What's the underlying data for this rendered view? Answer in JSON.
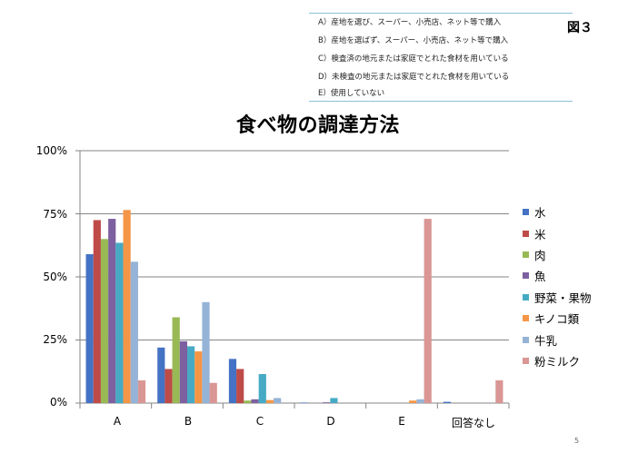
{
  "figure_label": "図３",
  "options": [
    "A）産地を選び、スーパー、小売店、ネット等で購入",
    "B）産地を選ばず、スーパー、小売店、ネット等で購入",
    "C）検査済の地元または家庭でとれた食材を用いている",
    "D）未検査の地元または家庭でとれた食材を用いている",
    "E）使用していない"
  ],
  "page_number": "5",
  "colors": {
    "水": "#4472c4",
    "米": "#be4b48",
    "肉": "#98b954",
    "魚": "#7d60a0",
    "野菜・果物": "#46aac4",
    "キノコ類": "#f59646",
    "牛乳": "#95b3d7",
    "粉ミルク": "#d99694",
    "grid": "#868686"
  },
  "chart_data": {
    "type": "bar",
    "title": "食べ物の調達方法",
    "xlabel": "",
    "ylabel": "",
    "categories": [
      "A",
      "B",
      "C",
      "D",
      "E",
      "回答なし"
    ],
    "y_tick_labels": [
      "0%",
      "25%",
      "50%",
      "75%",
      "100%"
    ],
    "ylim": [
      0,
      100
    ],
    "grid": true,
    "legend_position": "right",
    "series": [
      {
        "name": "水",
        "values": [
          59,
          22,
          17.5,
          0.2,
          0,
          0.5
        ]
      },
      {
        "name": "米",
        "values": [
          72.5,
          13.5,
          13.5,
          0,
          0,
          0
        ]
      },
      {
        "name": "肉",
        "values": [
          65,
          34,
          1,
          0,
          0,
          0
        ]
      },
      {
        "name": "魚",
        "values": [
          73,
          24.5,
          1.5,
          0.3,
          0,
          0
        ]
      },
      {
        "name": "野菜・果物",
        "values": [
          63.5,
          22.5,
          11.5,
          2,
          0,
          0
        ]
      },
      {
        "name": "キノコ類",
        "values": [
          76.5,
          20.5,
          1.2,
          0,
          1,
          0
        ]
      },
      {
        "name": "牛乳",
        "values": [
          56,
          40,
          2,
          0,
          1.5,
          0
        ]
      },
      {
        "name": "粉ミルク",
        "values": [
          9,
          8,
          0,
          0,
          73,
          9
        ]
      }
    ]
  }
}
